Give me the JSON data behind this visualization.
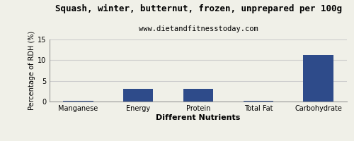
{
  "title": "Squash, winter, butternut, frozen, unprepared per 100g",
  "subtitle": "www.dietandfitnesstoday.com",
  "xlabel": "Different Nutrients",
  "ylabel": "Percentage of RDH (%)",
  "categories": [
    "Manganese",
    "Energy",
    "Protein",
    "Total Fat",
    "Carbohydrate"
  ],
  "values": [
    0.1,
    3.0,
    3.0,
    0.1,
    11.3
  ],
  "bar_color": "#2e4b8a",
  "ylim": [
    0,
    15
  ],
  "yticks": [
    0,
    5,
    10,
    15
  ],
  "background_color": "#f0f0e8",
  "grid_color": "#cccccc",
  "title_fontsize": 9,
  "subtitle_fontsize": 7.5,
  "xlabel_fontsize": 8,
  "ylabel_fontsize": 7,
  "tick_fontsize": 7
}
